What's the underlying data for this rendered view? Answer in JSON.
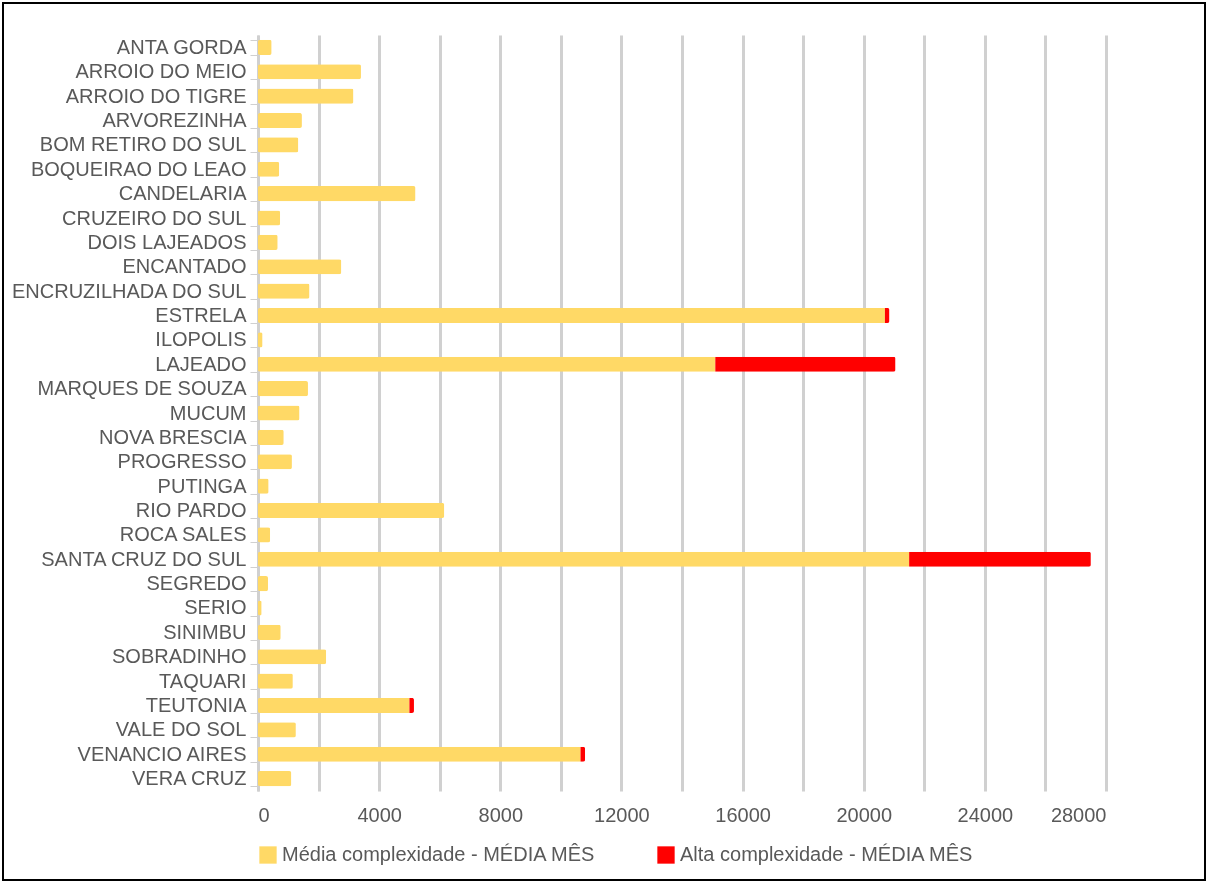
{
  "chart_data": {
    "type": "bar",
    "orientation": "horizontal",
    "stacked": true,
    "categories": [
      "ANTA GORDA",
      "ARROIO DO MEIO",
      "ARROIO DO TIGRE",
      "ARVOREZINHA",
      "BOM RETIRO DO SUL",
      "BOQUEIRAO DO LEAO",
      "CANDELARIA",
      "CRUZEIRO DO SUL",
      "DOIS LAJEADOS",
      "ENCANTADO",
      "ENCRUZILHADA DO SUL",
      "ESTRELA",
      "ILOPOLIS",
      "LAJEADO",
      "MARQUES DE SOUZA",
      "MUCUM",
      "NOVA BRESCIA",
      "PROGRESSO",
      "PUTINGA",
      "RIO PARDO",
      "ROCA SALES",
      "SANTA CRUZ DO SUL",
      "SEGREDO",
      "SERIO",
      "SINIMBU",
      "SOBRADINHO",
      "TAQUARI",
      "TEUTONIA",
      "VALE DO SOL",
      "VENANCIO AIRES",
      "VERA CRUZ"
    ],
    "series": [
      {
        "name": "Média complexidade - MÉDIA MÊS",
        "color": "#ffd966",
        "values": [
          450,
          3400,
          3150,
          1450,
          1330,
          700,
          5200,
          730,
          650,
          2750,
          1700,
          20700,
          150,
          15100,
          1650,
          1370,
          850,
          1120,
          350,
          6150,
          400,
          21500,
          330,
          120,
          750,
          2250,
          1150,
          5000,
          1250,
          10650,
          1100
        ]
      },
      {
        "name": "Alta complexidade - MÉDIA MÊS",
        "color": "#ff0000",
        "values": [
          0,
          0,
          0,
          0,
          0,
          0,
          0,
          0,
          0,
          0,
          0,
          150,
          0,
          5950,
          0,
          0,
          0,
          0,
          0,
          0,
          0,
          6000,
          0,
          0,
          0,
          0,
          0,
          150,
          0,
          150,
          0
        ]
      }
    ],
    "xlim": [
      0,
      28000
    ],
    "xticks": [
      0,
      {
        "value": 2000,
        "label": null
      },
      4000,
      {
        "value": 6000,
        "label": null
      },
      8000,
      {
        "value": 10000,
        "label": null
      },
      12000,
      {
        "value": 14000,
        "label": null
      },
      16000,
      {
        "value": 18000,
        "label": null
      },
      20000,
      {
        "value": 22000,
        "label": null
      },
      24000,
      {
        "value": 26000,
        "label": null
      },
      28000
    ],
    "grid": "x",
    "legend": "bottom"
  }
}
